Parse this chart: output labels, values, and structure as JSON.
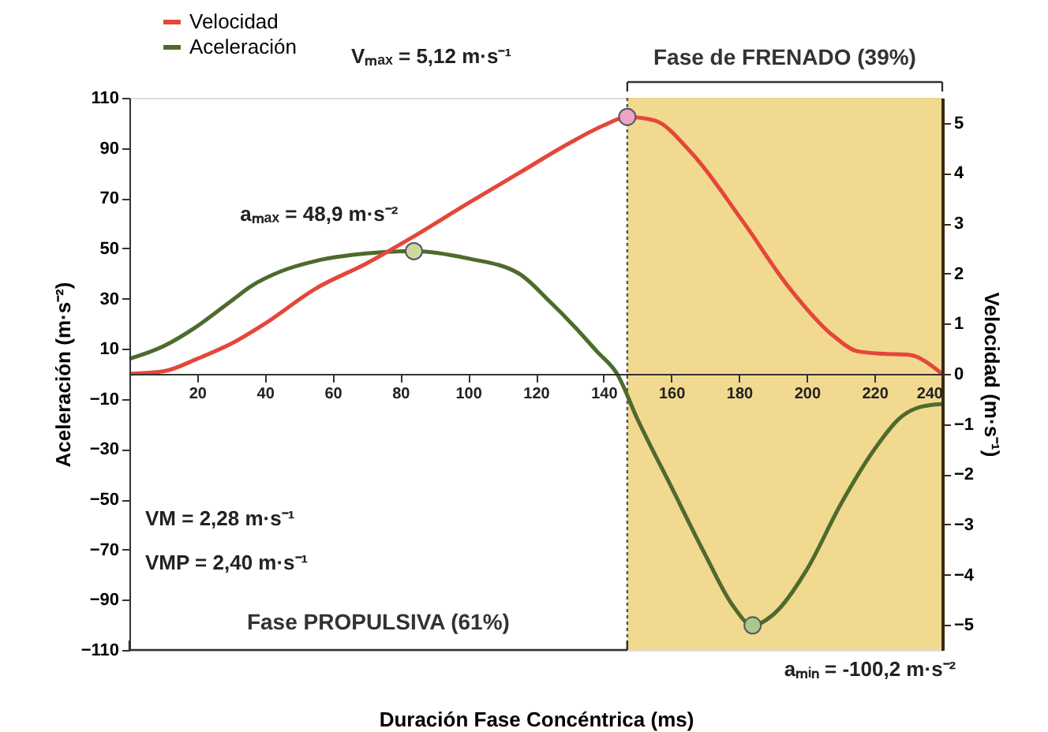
{
  "chart_data": {
    "type": "line",
    "xlabel": "Duración Fase Concéntrica  (ms)",
    "ylabel": "Aceleración (m·s⁻²)",
    "y2label": "Velocidad (m·s⁻¹)",
    "xlim": [
      0,
      240
    ],
    "xticks": [
      20,
      40,
      60,
      80,
      100,
      120,
      140,
      160,
      180,
      200,
      220,
      240
    ],
    "ylim": [
      -110,
      110
    ],
    "yticks": [
      -110,
      -90,
      -70,
      -50,
      -30,
      -10,
      10,
      30,
      50,
      70,
      90,
      110
    ],
    "y2lim": [
      -5.5,
      5.5
    ],
    "y2ticks": [
      -5,
      -4,
      -3,
      -2,
      -1,
      0,
      1,
      2,
      3,
      4,
      5
    ],
    "legend": "top left",
    "line_style": "solid",
    "series": [
      {
        "name": "Velocidad",
        "color": "#e4473a",
        "axis": "y2",
        "x": [
          0,
          10,
          20,
          30,
          40,
          55,
          70,
          83,
          100,
          115,
          130,
          140,
          147,
          155,
          166,
          181,
          195,
          208,
          215,
          223,
          230,
          240
        ],
        "values": [
          0,
          0.05,
          0.3,
          0.6,
          1.0,
          1.7,
          2.2,
          2.7,
          3.4,
          4.0,
          4.6,
          4.95,
          5.12,
          5.05,
          4.4,
          3.05,
          1.7,
          0.75,
          0.45,
          0.4,
          0.38,
          0
        ]
      },
      {
        "name": "Aceleración",
        "color": "#4d6b2c",
        "x": [
          0,
          10,
          20,
          30,
          36,
          45,
          55,
          70,
          84,
          100,
          115,
          124,
          132,
          138,
          144,
          150,
          160,
          170,
          178,
          184,
          190,
          200,
          210,
          220,
          228,
          234,
          240
        ],
        "values": [
          6,
          11,
          19,
          29,
          35,
          41,
          45,
          48,
          48.9,
          46,
          40,
          29,
          18,
          9,
          0,
          -18,
          -45,
          -72,
          -92,
          -100.2,
          -96,
          -78,
          -52,
          -30,
          -17,
          -13,
          -12
        ]
      },
      {
        "type": "scatter",
        "color": "#e9a6c4",
        "axis": "y2",
        "marker": "circle",
        "x": [
          147
        ],
        "values": [
          5.12
        ]
      },
      {
        "type": "scatter",
        "color": "#cfd99a",
        "marker": "circle",
        "x": [
          84
        ],
        "values": [
          48.9
        ]
      },
      {
        "type": "scatter",
        "color": "#a9c98c",
        "marker": "circle",
        "x": [
          184
        ],
        "values": [
          -100.2
        ]
      }
    ],
    "bands": [
      {
        "axis": "x",
        "from": 147,
        "to": 240,
        "label": "Fase de FRENADO (39%)",
        "color": "#f0d27c"
      }
    ],
    "ref_lines": [
      {
        "axis": "x",
        "value": 147,
        "line_style": "dotted"
      }
    ],
    "annotations": [
      {
        "text": "aₘₐₓ = 48,9 m·s⁻²",
        "x": 84,
        "y": 48.9
      },
      {
        "text": "aₘᵢₙ = -100,2 m·s⁻²",
        "x": 184,
        "y": -100.2
      },
      "Vₘₐₓ = 5,12 m·s⁻¹",
      "VM  = 2,28 m·s⁻¹",
      "VMP  = 2,40 m·s⁻¹",
      "Fase PROPULSIVA (61%)"
    ]
  }
}
